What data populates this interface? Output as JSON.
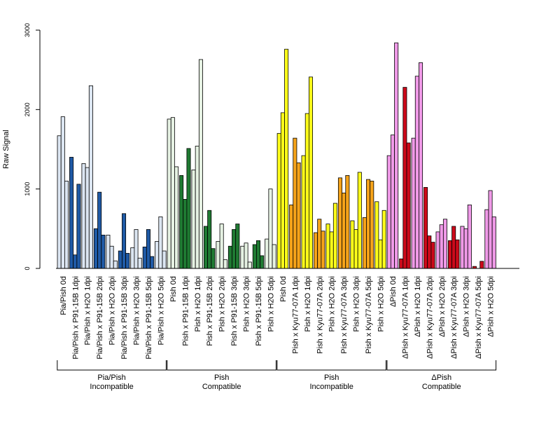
{
  "chart_data": {
    "type": "bar",
    "ylabel": "Raw Signal",
    "xlabel": "",
    "ylim": [
      0,
      3000
    ],
    "y_ticks": [
      0,
      1000,
      2000,
      3000
    ],
    "grid": false,
    "bars_per_category": 3,
    "categories": [
      {
        "label": "Pia/Pish 0d",
        "values": [
          1670,
          1910,
          1100
        ],
        "color": "#dce6f2"
      },
      {
        "label": "Pia/Pish x P91-15B 1dpi",
        "values": [
          1400,
          170,
          1060
        ],
        "color": "#1f5aa6"
      },
      {
        "label": "Pia/Pish x H2O 1dpi",
        "values": [
          1320,
          1270,
          2300
        ],
        "color": "#dce6f2"
      },
      {
        "label": "Pia/Pish x P91-15B 2dpi",
        "values": [
          500,
          960,
          420
        ],
        "color": "#1f5aa6"
      },
      {
        "label": "Pia/Pish x H2O 2dpi",
        "values": [
          420,
          280,
          95
        ],
        "color": "#dce6f2"
      },
      {
        "label": "Pia/Pish x P91-15B 3dpi",
        "values": [
          220,
          690,
          190
        ],
        "color": "#1f5aa6"
      },
      {
        "label": "Pia/Pish x H2O 3dpi",
        "values": [
          260,
          490,
          130
        ],
        "color": "#dce6f2"
      },
      {
        "label": "Pia/Pish x P91-15B 5dpi",
        "values": [
          270,
          490,
          150
        ],
        "color": "#1f5aa6"
      },
      {
        "label": "Pia/Pish x H2O 5dpi",
        "values": [
          340,
          650,
          220
        ],
        "color": "#dce6f2"
      },
      {
        "label": "Pish 0d",
        "values": [
          1880,
          1900,
          1280
        ],
        "color": "#e6f2e3"
      },
      {
        "label": "Pish x P91-15B 1dpi",
        "values": [
          1170,
          870,
          1510
        ],
        "color": "#1f7a32"
      },
      {
        "label": "Pish x H2O 1dpi",
        "values": [
          1240,
          1540,
          2630
        ],
        "color": "#e6f2e3"
      },
      {
        "label": "Pish x P91-15B 2dpi",
        "values": [
          530,
          730,
          250
        ],
        "color": "#1f7a32"
      },
      {
        "label": "Pish x H2O 2dpi",
        "values": [
          340,
          560,
          110
        ],
        "color": "#e6f2e3"
      },
      {
        "label": "Pish x P91-15B 3dpi",
        "values": [
          280,
          490,
          560
        ],
        "color": "#1f7a32"
      },
      {
        "label": "Pish x H2O 3dpi",
        "values": [
          280,
          320,
          80
        ],
        "color": "#e6f2e3"
      },
      {
        "label": "Pish x P91-15B 5dpi",
        "values": [
          300,
          350,
          160
        ],
        "color": "#1f7a32"
      },
      {
        "label": "Pish x H2O 5dpi",
        "values": [
          370,
          1000,
          300
        ],
        "color": "#e6f2e3"
      },
      {
        "label": "Pish 0d",
        "values": [
          1700,
          1960,
          2760
        ],
        "color": "#ffff1a"
      },
      {
        "label": "Pish x Kyu77-07A 1dpi",
        "values": [
          800,
          1640,
          1330
        ],
        "color": "#f5a31a"
      },
      {
        "label": "Pish x H2O 1dpi",
        "values": [
          1420,
          1950,
          2410
        ],
        "color": "#ffff1a"
      },
      {
        "label": "Pish x Kyu77-07A 2dpi",
        "values": [
          450,
          620,
          470
        ],
        "color": "#f5a31a"
      },
      {
        "label": "Pish x H2O 2dpi",
        "values": [
          560,
          460,
          820
        ],
        "color": "#ffff1a"
      },
      {
        "label": "Pish x Kyu77-07A 3dpi",
        "values": [
          1140,
          950,
          1170
        ],
        "color": "#f5a31a"
      },
      {
        "label": "Pish x H2O 3dpi",
        "values": [
          600,
          490,
          1210
        ],
        "color": "#ffff1a"
      },
      {
        "label": "Pish x Kyu77-07A 5dpi",
        "values": [
          640,
          1120,
          1100
        ],
        "color": "#f5a31a"
      },
      {
        "label": "Pish x H2O 5dpi",
        "values": [
          840,
          360,
          730
        ],
        "color": "#ffff1a"
      },
      {
        "label": "ΔPish 0d",
        "values": [
          1420,
          1680,
          2840
        ],
        "color": "#f09ae8"
      },
      {
        "label": "ΔPish x Kyu77-07A 1dpi",
        "values": [
          120,
          2280,
          1580
        ],
        "color": "#cc0a1a"
      },
      {
        "label": "ΔPish x H2O 1dpi",
        "values": [
          1640,
          2420,
          2590
        ],
        "color": "#f09ae8"
      },
      {
        "label": "ΔPish x Kyu77-07A 2dpi",
        "values": [
          1020,
          410,
          330
        ],
        "color": "#cc0a1a"
      },
      {
        "label": "ΔPish x H2O 2dpi",
        "values": [
          460,
          550,
          620
        ],
        "color": "#f09ae8"
      },
      {
        "label": "ΔPish x Kyu77-07A 3dpi",
        "values": [
          350,
          530,
          360
        ],
        "color": "#cc0a1a"
      },
      {
        "label": "ΔPish x H2O 3dpi",
        "values": [
          530,
          500,
          800
        ],
        "color": "#f09ae8"
      },
      {
        "label": "ΔPish x Kyu77-07A 5dpi",
        "values": [
          25,
          0,
          90
        ],
        "color": "#cc0a1a"
      },
      {
        "label": "ΔPish x H2O 5dpi",
        "values": [
          740,
          980,
          650
        ],
        "color": "#f09ae8"
      }
    ],
    "groups": [
      {
        "line1": "Pia/Pish",
        "line2": "Incompatible",
        "from": 0,
        "to": 8
      },
      {
        "line1": "Pish",
        "line2": "Compatible",
        "from": 9,
        "to": 17
      },
      {
        "line1": "Pish",
        "line2": "Incompatible",
        "from": 18,
        "to": 26
      },
      {
        "line1": "ΔPish",
        "line2": "Compatible",
        "from": 27,
        "to": 35
      }
    ]
  }
}
